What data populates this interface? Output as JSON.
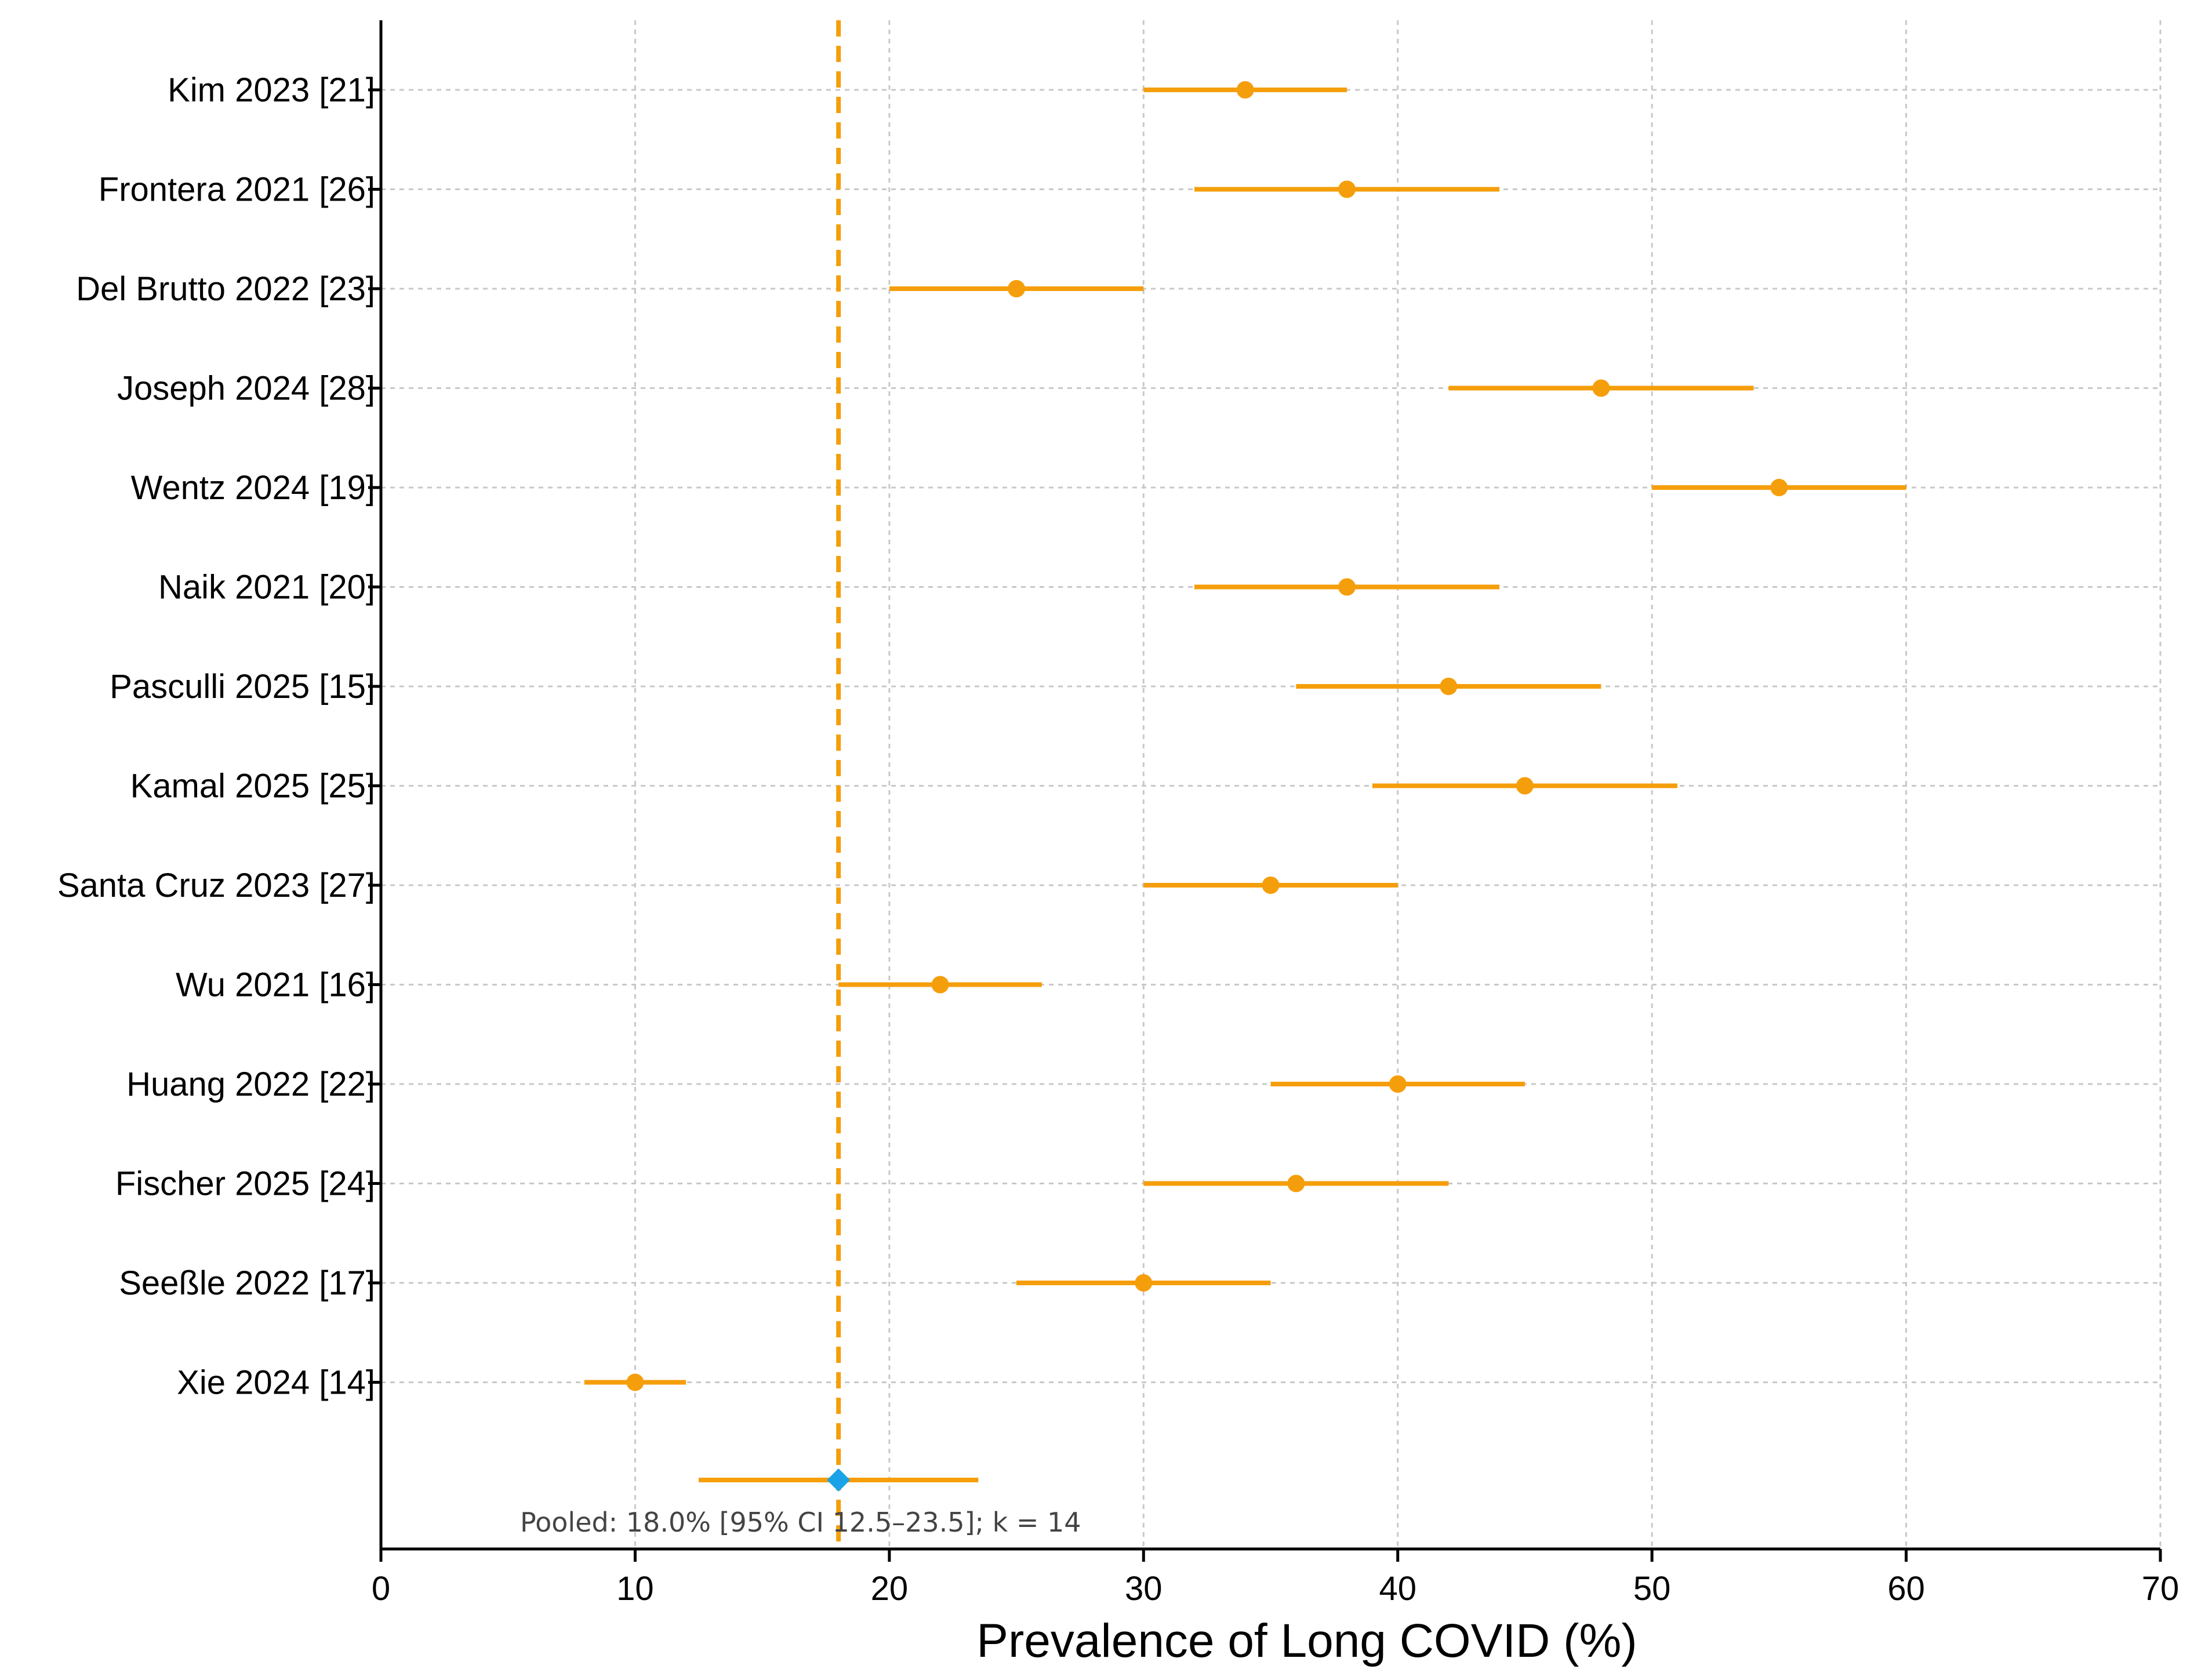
{
  "chart_data": {
    "type": "forest",
    "xlabel": "Prevalence of Long COVID (%)",
    "xlim": [
      0,
      70
    ],
    "xticks": [
      0,
      10,
      20,
      30,
      40,
      50,
      60,
      70
    ],
    "grid": true,
    "studies": [
      {
        "label": "Kim 2023 [21]",
        "estimate": 34,
        "lower": 30,
        "upper": 38
      },
      {
        "label": "Frontera 2021 [26]",
        "estimate": 38,
        "lower": 32,
        "upper": 44
      },
      {
        "label": "Del Brutto 2022 [23]",
        "estimate": 25,
        "lower": 20,
        "upper": 30
      },
      {
        "label": "Joseph 2024 [28]",
        "estimate": 48,
        "lower": 42,
        "upper": 54
      },
      {
        "label": "Wentz 2024 [19]",
        "estimate": 55,
        "lower": 50,
        "upper": 60
      },
      {
        "label": "Naik 2021 [20]",
        "estimate": 38,
        "lower": 32,
        "upper": 44
      },
      {
        "label": "Pasculli 2025 [15]",
        "estimate": 42,
        "lower": 36,
        "upper": 48
      },
      {
        "label": "Kamal 2025 [25]",
        "estimate": 45,
        "lower": 39,
        "upper": 51
      },
      {
        "label": "Santa Cruz 2023 [27]",
        "estimate": 35,
        "lower": 30,
        "upper": 40
      },
      {
        "label": "Wu 2021 [16]",
        "estimate": 22,
        "lower": 18,
        "upper": 26
      },
      {
        "label": "Huang 2022 [22]",
        "estimate": 40,
        "lower": 35,
        "upper": 45
      },
      {
        "label": "Fischer 2025 [24]",
        "estimate": 36,
        "lower": 30,
        "upper": 42
      },
      {
        "label": "Seeßle 2022 [17]",
        "estimate": 30,
        "lower": 25,
        "upper": 35
      },
      {
        "label": "Xie 2024 [14]",
        "estimate": 10,
        "lower": 8,
        "upper": 12
      }
    ],
    "pooled": {
      "estimate": 18.0,
      "lower": 12.5,
      "upper": 23.5,
      "k": 14,
      "label": "Pooled: 18.0% [95% CI 12.5–23.5]; k = 14"
    },
    "reference_line": 18,
    "colors": {
      "study": "#f59e0b",
      "pooled_marker": "#1aa3e8",
      "reference_line": "#f59e0b",
      "grid": "#c8c8c8",
      "axis": "#000000"
    }
  }
}
